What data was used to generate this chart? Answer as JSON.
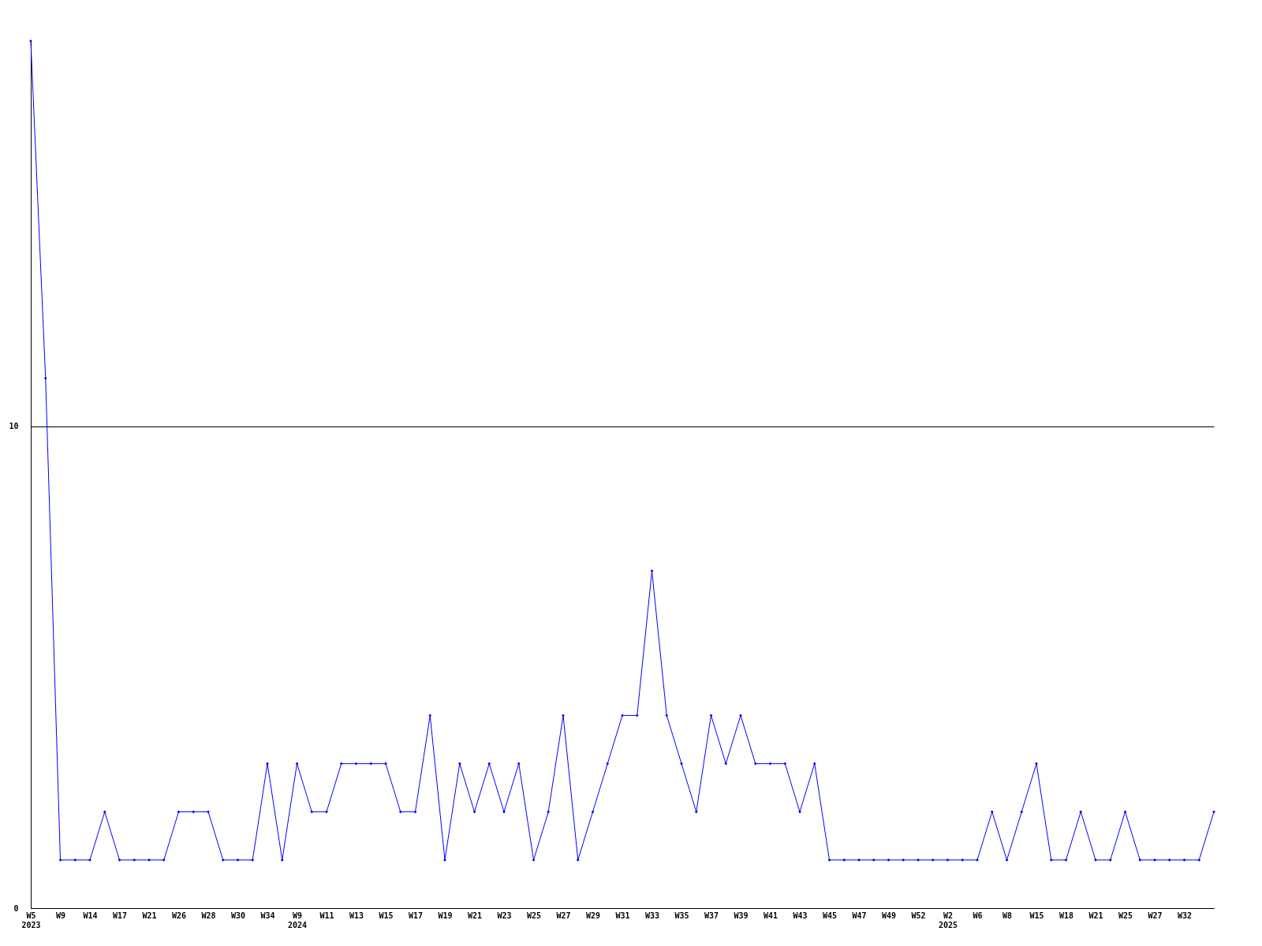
{
  "chart_data": {
    "type": "line",
    "categories": [
      "W5\n2023",
      null,
      "W9",
      null,
      "W14",
      null,
      "W17",
      null,
      "W21",
      null,
      "W26",
      null,
      "W28",
      null,
      "W30",
      null,
      "W34",
      null,
      "W9\n2024",
      null,
      "W11",
      null,
      "W13",
      null,
      "W15",
      null,
      "W17",
      null,
      "W19",
      null,
      "W21",
      null,
      "W23",
      null,
      "W25",
      null,
      "W27",
      null,
      "W29",
      null,
      "W31",
      null,
      "W33",
      null,
      "W35",
      null,
      "W37",
      null,
      "W39",
      null,
      "W41",
      null,
      "W43",
      null,
      "W45",
      null,
      "W47",
      null,
      "W49",
      null,
      "W52",
      null,
      "W2\n2025",
      null,
      "W6",
      null,
      "W8",
      null,
      "W15",
      null,
      "W18",
      null,
      "W21",
      null,
      "W25",
      null,
      "W27",
      null,
      "W32",
      null,
      null
    ],
    "series": [
      {
        "color": "#0000ff",
        "values": [
          18,
          11,
          1,
          1,
          1,
          2,
          1,
          1,
          1,
          1,
          2,
          2,
          2,
          1,
          1,
          1,
          3,
          1,
          3,
          2,
          2,
          3,
          3,
          3,
          3,
          2,
          2,
          4,
          1,
          3,
          2,
          3,
          2,
          3,
          1,
          2,
          4,
          1,
          2,
          3,
          4,
          4,
          7,
          4,
          3,
          2,
          4,
          3,
          4,
          3,
          3,
          3,
          2,
          3,
          1,
          1,
          1,
          1,
          1,
          1,
          1,
          1,
          1,
          1,
          1,
          2,
          1,
          2,
          3,
          1,
          1,
          2,
          1,
          1,
          2,
          1,
          1,
          1,
          1,
          1,
          2
        ]
      }
    ],
    "ylim": [
      0,
      18
    ],
    "yticks": [
      0,
      10
    ],
    "grid": "y",
    "marker": "diamond",
    "line_style": "solid",
    "legend": false
  }
}
